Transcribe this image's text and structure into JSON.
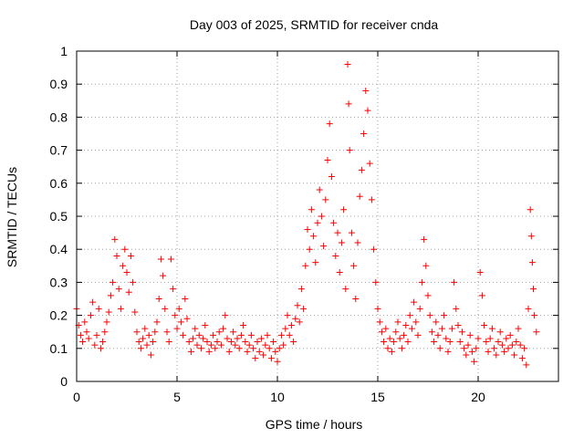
{
  "chart_data": {
    "type": "scatter",
    "title": "Day 003 of 2025, SRMTID for receiver cnda",
    "xlabel": "GPS time / hours",
    "ylabel": "SRMTID / TECUs",
    "xlim": [
      0,
      24
    ],
    "ylim": [
      0,
      1
    ],
    "xticks": [
      0,
      5,
      10,
      15,
      20
    ],
    "xtick_labels": [
      "0",
      "5",
      "10",
      "15",
      "20"
    ],
    "yticks": [
      0,
      0.1,
      0.2,
      0.3,
      0.4,
      0.5,
      0.6,
      0.7,
      0.8,
      0.9,
      1
    ],
    "ytick_labels": [
      "0",
      "0.1",
      "0.2",
      "0.3",
      "0.4",
      "0.5",
      "0.6",
      "0.7",
      "0.8",
      "0.9",
      "1"
    ],
    "grid": true,
    "marker": "+",
    "color": "#ff0000",
    "series": [
      {
        "name": "SRMTID",
        "points": [
          [
            0.0,
            0.22
          ],
          [
            0.1,
            0.17
          ],
          [
            0.2,
            0.14
          ],
          [
            0.3,
            0.12
          ],
          [
            0.4,
            0.18
          ],
          [
            0.5,
            0.15
          ],
          [
            0.6,
            0.13
          ],
          [
            0.7,
            0.2
          ],
          [
            0.8,
            0.24
          ],
          [
            0.9,
            0.11
          ],
          [
            1.0,
            0.14
          ],
          [
            1.1,
            0.22
          ],
          [
            1.2,
            0.1
          ],
          [
            1.3,
            0.12
          ],
          [
            1.4,
            0.15
          ],
          [
            1.5,
            0.18
          ],
          [
            1.6,
            0.21
          ],
          [
            1.7,
            0.26
          ],
          [
            1.8,
            0.3
          ],
          [
            1.9,
            0.43
          ],
          [
            2.0,
            0.38
          ],
          [
            2.1,
            0.28
          ],
          [
            2.2,
            0.22
          ],
          [
            2.3,
            0.35
          ],
          [
            2.4,
            0.4
          ],
          [
            2.5,
            0.33
          ],
          [
            2.6,
            0.27
          ],
          [
            2.7,
            0.38
          ],
          [
            2.8,
            0.3
          ],
          [
            2.9,
            0.21
          ],
          [
            3.0,
            0.15
          ],
          [
            3.1,
            0.12
          ],
          [
            3.2,
            0.1
          ],
          [
            3.3,
            0.13
          ],
          [
            3.4,
            0.16
          ],
          [
            3.5,
            0.11
          ],
          [
            3.6,
            0.14
          ],
          [
            3.7,
            0.08
          ],
          [
            3.8,
            0.12
          ],
          [
            3.9,
            0.15
          ],
          [
            4.0,
            0.18
          ],
          [
            4.1,
            0.25
          ],
          [
            4.2,
            0.37
          ],
          [
            4.3,
            0.32
          ],
          [
            4.4,
            0.22
          ],
          [
            4.5,
            0.15
          ],
          [
            4.6,
            0.12
          ],
          [
            4.7,
            0.37
          ],
          [
            4.8,
            0.28
          ],
          [
            4.9,
            0.2
          ],
          [
            5.0,
            0.16
          ],
          [
            5.1,
            0.22
          ],
          [
            5.2,
            0.18
          ],
          [
            5.3,
            0.14
          ],
          [
            5.4,
            0.25
          ],
          [
            5.5,
            0.19
          ],
          [
            5.6,
            0.12
          ],
          [
            5.7,
            0.09
          ],
          [
            5.8,
            0.13
          ],
          [
            5.9,
            0.16
          ],
          [
            6.0,
            0.11
          ],
          [
            6.1,
            0.14
          ],
          [
            6.2,
            0.1
          ],
          [
            6.3,
            0.13
          ],
          [
            6.4,
            0.17
          ],
          [
            6.5,
            0.12
          ],
          [
            6.6,
            0.09
          ],
          [
            6.7,
            0.11
          ],
          [
            6.8,
            0.14
          ],
          [
            6.9,
            0.1
          ],
          [
            7.0,
            0.12
          ],
          [
            7.1,
            0.15
          ],
          [
            7.2,
            0.11
          ],
          [
            7.3,
            0.16
          ],
          [
            7.4,
            0.2
          ],
          [
            7.5,
            0.13
          ],
          [
            7.6,
            0.09
          ],
          [
            7.7,
            0.12
          ],
          [
            7.8,
            0.15
          ],
          [
            7.9,
            0.11
          ],
          [
            8.0,
            0.13
          ],
          [
            8.1,
            0.1
          ],
          [
            8.2,
            0.14
          ],
          [
            8.3,
            0.17
          ],
          [
            8.4,
            0.12
          ],
          [
            8.5,
            0.09
          ],
          [
            8.6,
            0.11
          ],
          [
            8.7,
            0.14
          ],
          [
            8.8,
            0.1
          ],
          [
            8.9,
            0.07
          ],
          [
            9.0,
            0.12
          ],
          [
            9.1,
            0.09
          ],
          [
            9.2,
            0.13
          ],
          [
            9.3,
            0.08
          ],
          [
            9.4,
            0.11
          ],
          [
            9.5,
            0.14
          ],
          [
            9.6,
            0.1
          ],
          [
            9.7,
            0.07
          ],
          [
            9.8,
            0.12
          ],
          [
            9.9,
            0.09
          ],
          [
            10.0,
            0.06
          ],
          [
            10.1,
            0.1
          ],
          [
            10.2,
            0.14
          ],
          [
            10.3,
            0.11
          ],
          [
            10.4,
            0.16
          ],
          [
            10.5,
            0.2
          ],
          [
            10.6,
            0.14
          ],
          [
            10.7,
            0.17
          ],
          [
            10.8,
            0.12
          ],
          [
            10.9,
            0.19
          ],
          [
            11.0,
            0.23
          ],
          [
            11.1,
            0.18
          ],
          [
            11.2,
            0.28
          ],
          [
            11.3,
            0.22
          ],
          [
            11.4,
            0.35
          ],
          [
            11.5,
            0.46
          ],
          [
            11.6,
            0.4
          ],
          [
            11.7,
            0.52
          ],
          [
            11.8,
            0.44
          ],
          [
            11.9,
            0.36
          ],
          [
            12.0,
            0.48
          ],
          [
            12.1,
            0.58
          ],
          [
            12.2,
            0.5
          ],
          [
            12.3,
            0.41
          ],
          [
            12.4,
            0.55
          ],
          [
            12.5,
            0.67
          ],
          [
            12.6,
            0.78
          ],
          [
            12.7,
            0.62
          ],
          [
            12.8,
            0.48
          ],
          [
            12.9,
            0.38
          ],
          [
            13.0,
            0.45
          ],
          [
            13.1,
            0.33
          ],
          [
            13.2,
            0.42
          ],
          [
            13.3,
            0.52
          ],
          [
            13.4,
            0.28
          ],
          [
            13.5,
            0.96
          ],
          [
            13.55,
            0.84
          ],
          [
            13.6,
            0.7
          ],
          [
            13.7,
            0.45
          ],
          [
            13.8,
            0.35
          ],
          [
            13.9,
            0.25
          ],
          [
            14.0,
            0.42
          ],
          [
            14.1,
            0.56
          ],
          [
            14.2,
            0.64
          ],
          [
            14.3,
            0.75
          ],
          [
            14.4,
            0.88
          ],
          [
            14.5,
            0.82
          ],
          [
            14.6,
            0.66
          ],
          [
            14.7,
            0.55
          ],
          [
            14.8,
            0.4
          ],
          [
            14.9,
            0.3
          ],
          [
            15.0,
            0.22
          ],
          [
            15.1,
            0.18
          ],
          [
            15.2,
            0.15
          ],
          [
            15.3,
            0.12
          ],
          [
            15.4,
            0.16
          ],
          [
            15.5,
            0.1
          ],
          [
            15.6,
            0.13
          ],
          [
            15.7,
            0.09
          ],
          [
            15.8,
            0.12
          ],
          [
            15.9,
            0.15
          ],
          [
            16.0,
            0.18
          ],
          [
            16.1,
            0.13
          ],
          [
            16.2,
            0.1
          ],
          [
            16.3,
            0.14
          ],
          [
            16.4,
            0.17
          ],
          [
            16.5,
            0.12
          ],
          [
            16.6,
            0.2
          ],
          [
            16.7,
            0.16
          ],
          [
            16.8,
            0.24
          ],
          [
            16.9,
            0.18
          ],
          [
            17.0,
            0.14
          ],
          [
            17.1,
            0.22
          ],
          [
            17.2,
            0.3
          ],
          [
            17.3,
            0.43
          ],
          [
            17.4,
            0.35
          ],
          [
            17.5,
            0.26
          ],
          [
            17.6,
            0.2
          ],
          [
            17.7,
            0.15
          ],
          [
            17.8,
            0.12
          ],
          [
            17.9,
            0.18
          ],
          [
            18.0,
            0.14
          ],
          [
            18.1,
            0.1
          ],
          [
            18.2,
            0.16
          ],
          [
            18.3,
            0.2
          ],
          [
            18.4,
            0.13
          ],
          [
            18.5,
            0.09
          ],
          [
            18.6,
            0.12
          ],
          [
            18.7,
            0.16
          ],
          [
            18.8,
            0.3
          ],
          [
            18.9,
            0.22
          ],
          [
            19.0,
            0.17
          ],
          [
            19.1,
            0.12
          ],
          [
            19.2,
            0.15
          ],
          [
            19.3,
            0.1
          ],
          [
            19.4,
            0.08
          ],
          [
            19.5,
            0.11
          ],
          [
            19.6,
            0.14
          ],
          [
            19.7,
            0.09
          ],
          [
            19.8,
            0.06
          ],
          [
            19.9,
            0.1
          ],
          [
            20.0,
            0.13
          ],
          [
            20.1,
            0.33
          ],
          [
            20.2,
            0.26
          ],
          [
            20.3,
            0.17
          ],
          [
            20.4,
            0.12
          ],
          [
            20.5,
            0.09
          ],
          [
            20.6,
            0.13
          ],
          [
            20.7,
            0.16
          ],
          [
            20.8,
            0.1
          ],
          [
            20.9,
            0.08
          ],
          [
            21.0,
            0.12
          ],
          [
            21.1,
            0.15
          ],
          [
            21.2,
            0.11
          ],
          [
            21.3,
            0.09
          ],
          [
            21.4,
            0.13
          ],
          [
            21.5,
            0.1
          ],
          [
            21.6,
            0.14
          ],
          [
            21.7,
            0.11
          ],
          [
            21.8,
            0.08
          ],
          [
            21.9,
            0.12
          ],
          [
            22.0,
            0.16
          ],
          [
            22.1,
            0.11
          ],
          [
            22.2,
            0.07
          ],
          [
            22.3,
            0.1
          ],
          [
            22.4,
            0.05
          ],
          [
            22.5,
            0.22
          ],
          [
            22.6,
            0.52
          ],
          [
            22.65,
            0.44
          ],
          [
            22.7,
            0.36
          ],
          [
            22.75,
            0.28
          ],
          [
            22.8,
            0.2
          ],
          [
            22.9,
            0.15
          ]
        ]
      }
    ]
  }
}
